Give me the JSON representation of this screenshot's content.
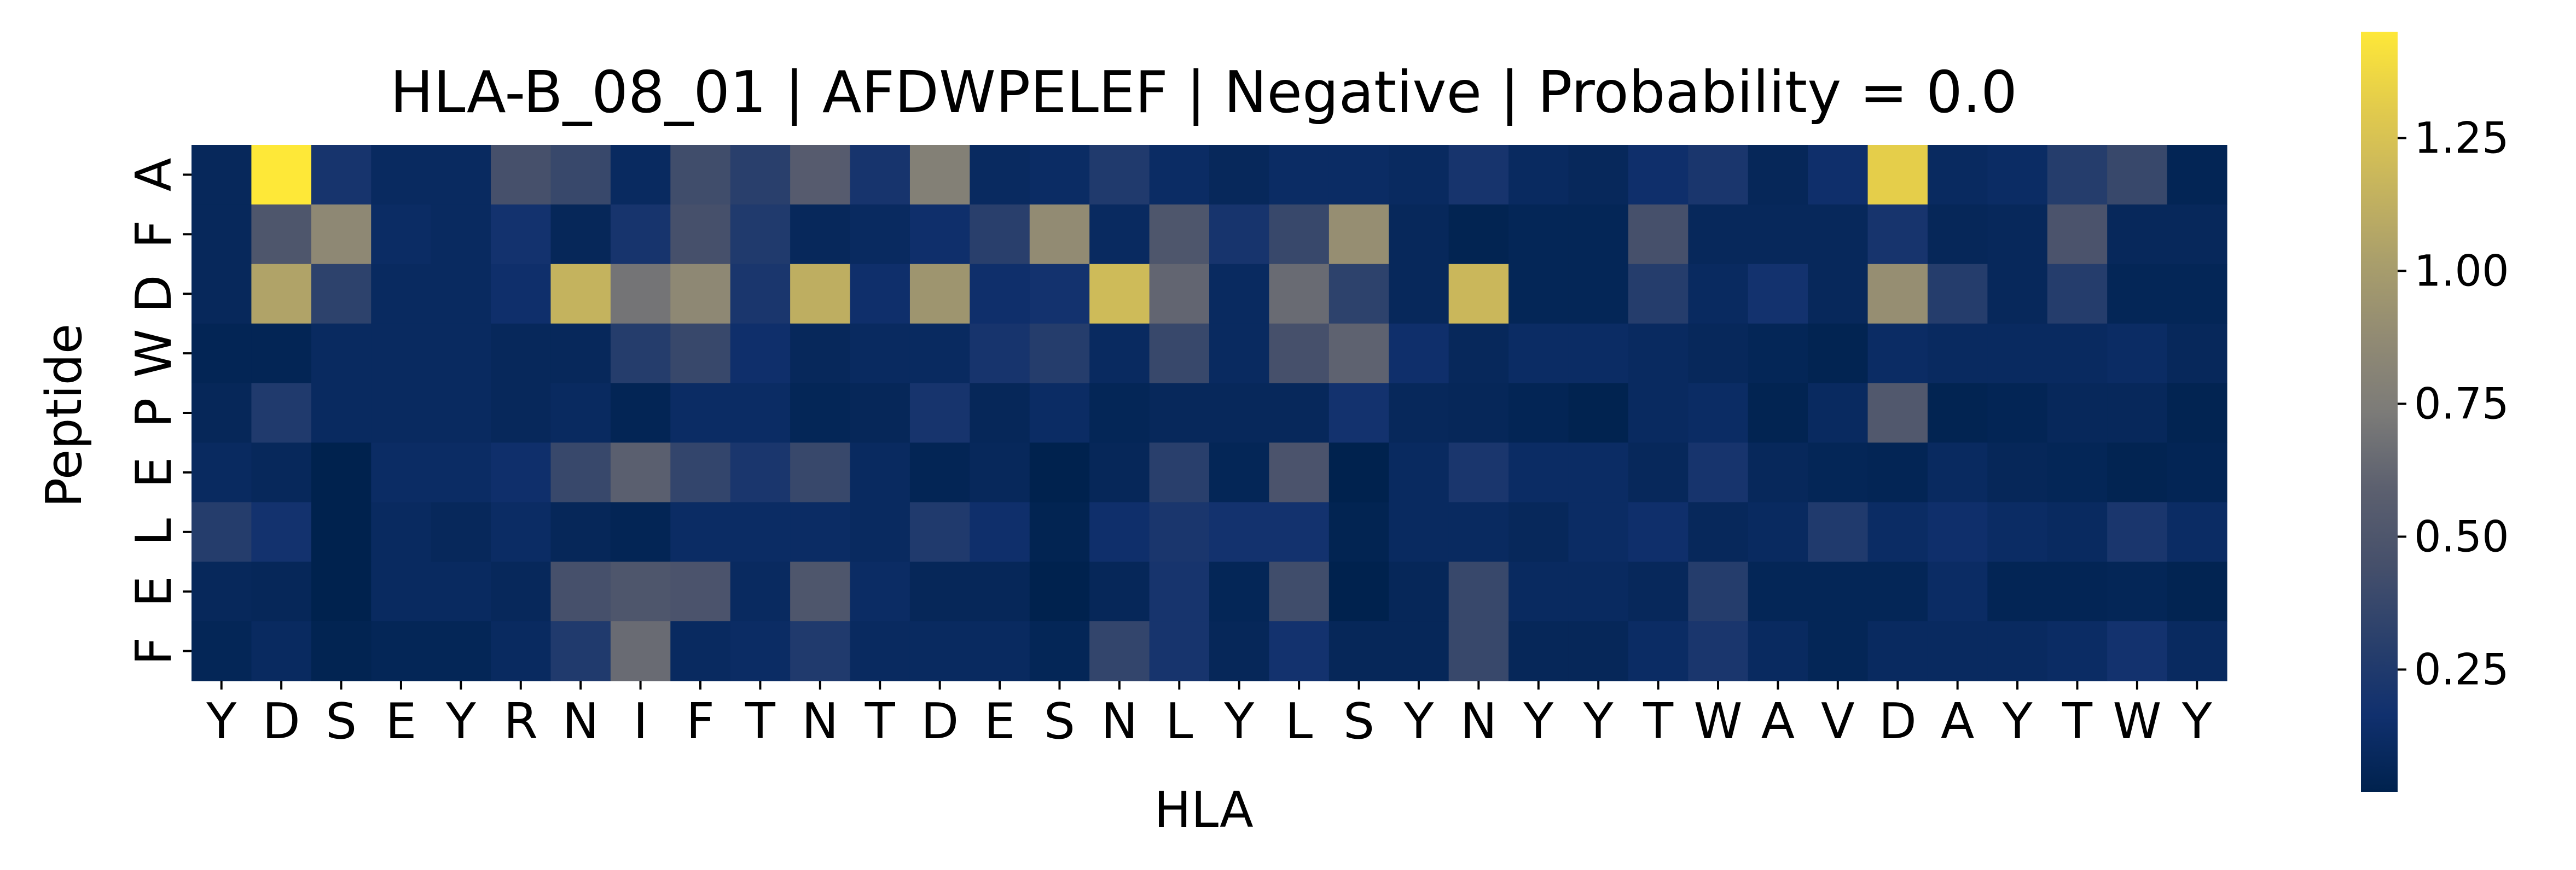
{
  "chart_data": {
    "type": "heatmap",
    "title": "HLA-B_08_01 | AFDWPELEF | Negative | Probability = 0.0",
    "xlabel": "HLA",
    "ylabel": "Peptide",
    "x_categories": [
      "Y",
      "D",
      "S",
      "E",
      "Y",
      "R",
      "N",
      "I",
      "F",
      "T",
      "N",
      "T",
      "D",
      "E",
      "S",
      "N",
      "L",
      "Y",
      "L",
      "S",
      "Y",
      "N",
      "Y",
      "Y",
      "T",
      "W",
      "A",
      "V",
      "D",
      "A",
      "Y",
      "T",
      "W",
      "Y"
    ],
    "y_categories": [
      "A",
      "F",
      "D",
      "W",
      "P",
      "E",
      "L",
      "E",
      "F"
    ],
    "values": [
      [
        0.08,
        1.45,
        0.2,
        0.1,
        0.1,
        0.45,
        0.38,
        0.1,
        0.42,
        0.3,
        0.55,
        0.2,
        0.78,
        0.1,
        0.12,
        0.25,
        0.12,
        0.08,
        0.12,
        0.12,
        0.1,
        0.2,
        0.1,
        0.08,
        0.15,
        0.22,
        0.07,
        0.15,
        1.32,
        0.1,
        0.12,
        0.28,
        0.38,
        0.05
      ],
      [
        0.08,
        0.5,
        0.85,
        0.12,
        0.1,
        0.18,
        0.07,
        0.2,
        0.45,
        0.25,
        0.08,
        0.1,
        0.15,
        0.3,
        0.88,
        0.1,
        0.5,
        0.2,
        0.38,
        0.9,
        0.08,
        0.04,
        0.06,
        0.06,
        0.45,
        0.08,
        0.08,
        0.08,
        0.2,
        0.07,
        0.08,
        0.48,
        0.08,
        0.08
      ],
      [
        0.08,
        1.05,
        0.32,
        0.1,
        0.1,
        0.15,
        1.15,
        0.7,
        0.85,
        0.22,
        1.12,
        0.15,
        0.95,
        0.15,
        0.18,
        1.2,
        0.62,
        0.1,
        0.65,
        0.32,
        0.08,
        1.18,
        0.06,
        0.06,
        0.28,
        0.1,
        0.18,
        0.08,
        0.9,
        0.28,
        0.08,
        0.28,
        0.06,
        0.06
      ],
      [
        0.05,
        0.05,
        0.1,
        0.1,
        0.1,
        0.08,
        0.08,
        0.28,
        0.38,
        0.15,
        0.08,
        0.1,
        0.1,
        0.2,
        0.28,
        0.1,
        0.38,
        0.1,
        0.45,
        0.6,
        0.15,
        0.08,
        0.12,
        0.12,
        0.1,
        0.08,
        0.06,
        0.04,
        0.12,
        0.1,
        0.1,
        0.1,
        0.12,
        0.08
      ],
      [
        0.07,
        0.25,
        0.1,
        0.1,
        0.1,
        0.08,
        0.1,
        0.05,
        0.12,
        0.12,
        0.06,
        0.07,
        0.2,
        0.07,
        0.12,
        0.06,
        0.08,
        0.08,
        0.08,
        0.18,
        0.08,
        0.07,
        0.05,
        0.03,
        0.1,
        0.12,
        0.04,
        0.1,
        0.52,
        0.04,
        0.05,
        0.08,
        0.08,
        0.04
      ],
      [
        0.1,
        0.08,
        0.02,
        0.12,
        0.12,
        0.15,
        0.38,
        0.58,
        0.35,
        0.22,
        0.38,
        0.1,
        0.05,
        0.08,
        0.02,
        0.07,
        0.3,
        0.06,
        0.48,
        0.02,
        0.1,
        0.22,
        0.12,
        0.12,
        0.08,
        0.2,
        0.08,
        0.06,
        0.05,
        0.1,
        0.07,
        0.06,
        0.04,
        0.05
      ],
      [
        0.28,
        0.18,
        0.02,
        0.1,
        0.08,
        0.12,
        0.07,
        0.05,
        0.12,
        0.12,
        0.12,
        0.1,
        0.25,
        0.15,
        0.04,
        0.15,
        0.22,
        0.18,
        0.18,
        0.04,
        0.1,
        0.1,
        0.08,
        0.12,
        0.15,
        0.08,
        0.1,
        0.25,
        0.12,
        0.15,
        0.12,
        0.1,
        0.22,
        0.12
      ],
      [
        0.08,
        0.07,
        0.02,
        0.1,
        0.1,
        0.08,
        0.45,
        0.5,
        0.48,
        0.1,
        0.5,
        0.12,
        0.07,
        0.07,
        0.02,
        0.07,
        0.2,
        0.06,
        0.42,
        0.02,
        0.07,
        0.38,
        0.1,
        0.1,
        0.08,
        0.28,
        0.06,
        0.06,
        0.06,
        0.12,
        0.05,
        0.05,
        0.06,
        0.04
      ],
      [
        0.06,
        0.1,
        0.04,
        0.06,
        0.06,
        0.1,
        0.25,
        0.65,
        0.1,
        0.12,
        0.25,
        0.1,
        0.1,
        0.1,
        0.06,
        0.35,
        0.2,
        0.07,
        0.18,
        0.07,
        0.07,
        0.38,
        0.07,
        0.07,
        0.12,
        0.22,
        0.1,
        0.06,
        0.1,
        0.1,
        0.1,
        0.12,
        0.18,
        0.1
      ]
    ],
    "colormap": "cividis",
    "colorbar": {
      "vmin": 0.02,
      "vmax": 1.45,
      "ticks": [
        0.25,
        0.5,
        0.75,
        1.0,
        1.25
      ],
      "tick_labels": [
        "0.25",
        "0.50",
        "0.75",
        "1.00",
        "1.25"
      ]
    },
    "grid": false,
    "legend": "colorbar-right"
  }
}
